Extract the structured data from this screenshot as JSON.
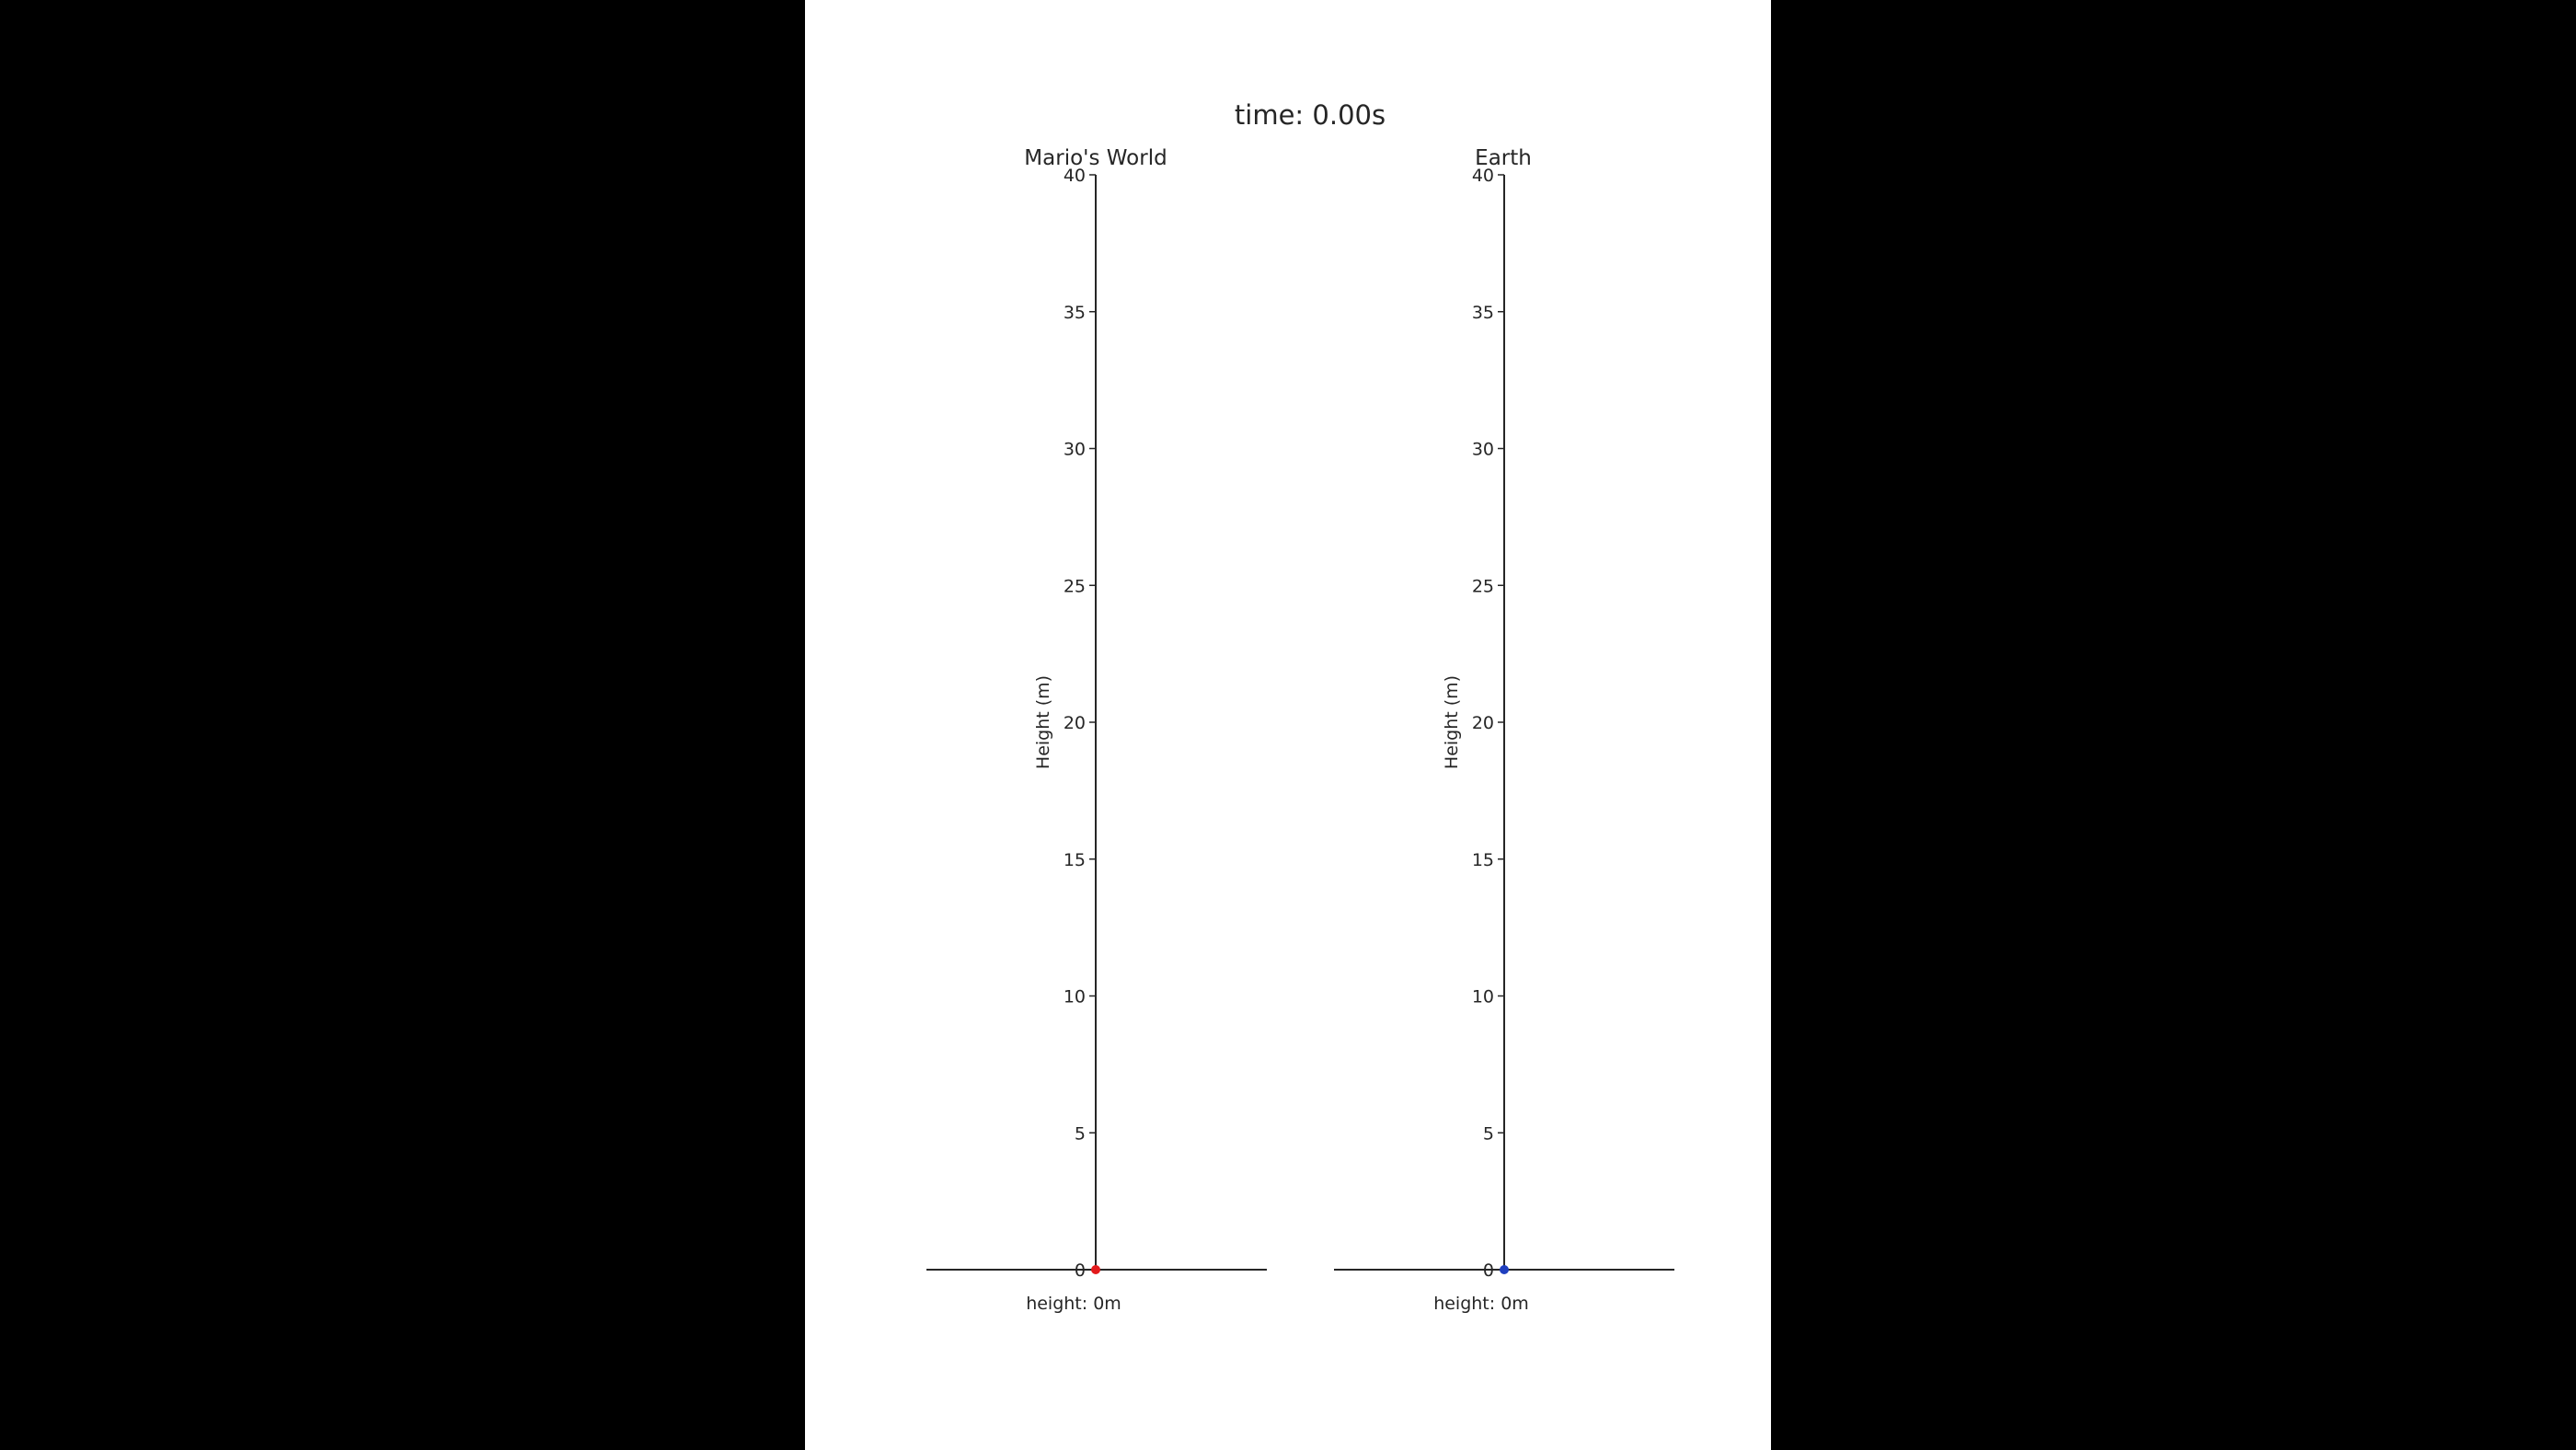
{
  "figure": {
    "suptitle": "time: 0.00s"
  },
  "colors": {
    "letterbox": "#000000",
    "canvas": "#ffffff",
    "axis_line": "#262626",
    "mario_marker": "#e31a1c",
    "earth_marker": "#1f3fbf"
  },
  "chart_data": [
    {
      "type": "scatter",
      "title": "Mario's World",
      "xlabel": "",
      "ylabel": "Height (m)",
      "ylim": [
        0,
        40
      ],
      "yticks": [
        0,
        5,
        10,
        15,
        20,
        25,
        30,
        35,
        40
      ],
      "ytick_labels": [
        "0",
        "5",
        "10",
        "15",
        "20",
        "25",
        "30",
        "35",
        "40"
      ],
      "grid": false,
      "points": [
        {
          "x": 0,
          "y": 0
        }
      ],
      "marker_color": "#e31a1c",
      "height_text": "height: 0m"
    },
    {
      "type": "scatter",
      "title": "Earth",
      "xlabel": "",
      "ylabel": "Height (m)",
      "ylim": [
        0,
        40
      ],
      "yticks": [
        0,
        5,
        10,
        15,
        20,
        25,
        30,
        35,
        40
      ],
      "ytick_labels": [
        "0",
        "5",
        "10",
        "15",
        "20",
        "25",
        "30",
        "35",
        "40"
      ],
      "grid": false,
      "points": [
        {
          "x": 0,
          "y": 0
        }
      ],
      "marker_color": "#1f3fbf",
      "height_text": "height: 0m"
    }
  ]
}
